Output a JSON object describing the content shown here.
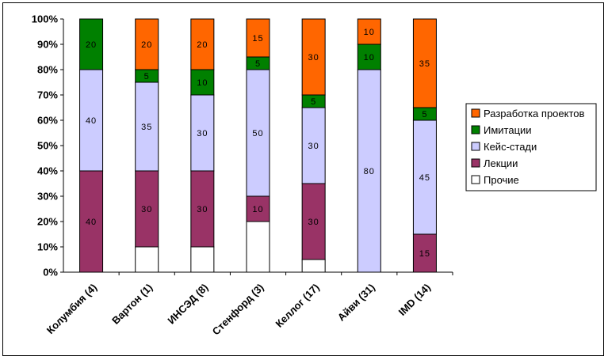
{
  "chart_data": {
    "type": "bar",
    "stacked": true,
    "normalized_percent": true,
    "categories": [
      "Колумбия (4)",
      "Вартон (1)",
      "ИНСЭД (8)",
      "Стенфорд (3)",
      "Келлог (17)",
      "Айви (31)",
      "IMD (14)"
    ],
    "series": [
      {
        "name": "Прочие",
        "values": [
          0,
          10,
          10,
          20,
          5,
          0,
          0
        ],
        "color": "#ffffff"
      },
      {
        "name": "Лекции",
        "values": [
          40,
          30,
          30,
          10,
          30,
          0,
          15
        ],
        "color": "#993366"
      },
      {
        "name": "Кейс-стади",
        "values": [
          40,
          35,
          30,
          50,
          30,
          80,
          45
        ],
        "color": "#ccccff"
      },
      {
        "name": "Имитации",
        "values": [
          20,
          5,
          10,
          5,
          5,
          10,
          5
        ],
        "color": "#008000"
      },
      {
        "name": "Разработка проектов",
        "values": [
          0,
          20,
          20,
          15,
          30,
          10,
          35
        ],
        "color": "#ff6600"
      }
    ],
    "ylim": [
      0,
      100
    ],
    "yticks": [
      "0%",
      "10%",
      "20%",
      "30%",
      "40%",
      "50%",
      "60%",
      "70%",
      "80%",
      "90%",
      "100%"
    ],
    "grid": false,
    "legend_position": "right",
    "legend_order": [
      "Разработка проектов",
      "Имитации",
      "Кейс-стади",
      "Лекции",
      "Прочие"
    ]
  }
}
